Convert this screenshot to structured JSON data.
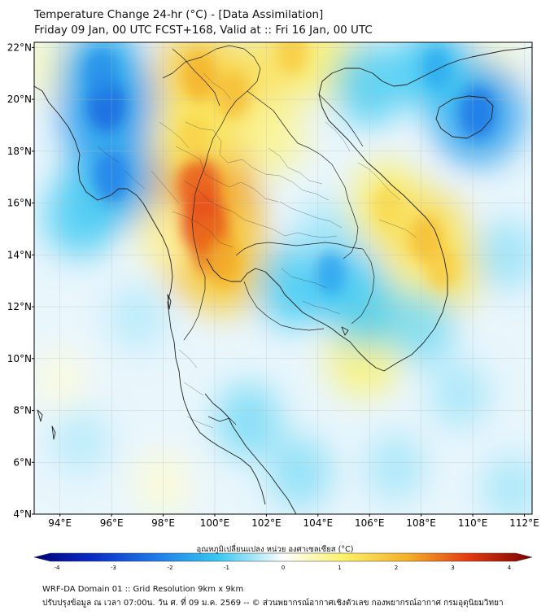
{
  "title": {
    "line1": "Temperature Change 24-hr (°C) - [Data Assimilation]",
    "line2": "Friday 09 Jan, 00 UTC FCST+168, Valid at :: Fri 16 Jan, 00 UTC"
  },
  "map": {
    "lat_labels": [
      "22°N",
      "20°N",
      "18°N",
      "16°N",
      "14°N",
      "12°N",
      "10°N",
      "8°N",
      "6°N",
      "4°N"
    ],
    "lat_values": [
      22,
      20,
      18,
      16,
      14,
      12,
      10,
      8,
      6,
      4
    ],
    "lon_labels": [
      "94°E",
      "96°E",
      "98°E",
      "100°E",
      "102°E",
      "104°E",
      "106°E",
      "108°E",
      "110°E",
      "112°E"
    ],
    "lon_values": [
      94,
      96,
      98,
      100,
      102,
      104,
      106,
      108,
      110,
      112
    ],
    "extent": {
      "lon_min": 93,
      "lon_max": 112.3,
      "lat_min": 4,
      "lat_max": 22.2
    },
    "field_blobs": [
      {
        "lon": 99.6,
        "lat": 15.2,
        "value": 3.0
      },
      {
        "lon": 99.4,
        "lat": 16.6,
        "value": 2.8
      },
      {
        "lon": 99.9,
        "lat": 14.3,
        "value": 2.6
      },
      {
        "lon": 100.4,
        "lat": 13.7,
        "value": 2.0
      },
      {
        "lon": 99.4,
        "lat": 20.9,
        "value": 2.0
      },
      {
        "lon": 100.7,
        "lat": 20.2,
        "value": 1.8
      },
      {
        "lon": 99.2,
        "lat": 18.5,
        "value": 1.5
      },
      {
        "lon": 103.0,
        "lat": 21.8,
        "value": 1.6
      },
      {
        "lon": 104.5,
        "lat": 21.5,
        "value": 1.2
      },
      {
        "lon": 102.2,
        "lat": 18.6,
        "value": 1.0
      },
      {
        "lon": 106.7,
        "lat": 15.9,
        "value": 1.4
      },
      {
        "lon": 108.2,
        "lat": 14.6,
        "value": 1.8
      },
      {
        "lon": 108.8,
        "lat": 13.5,
        "value": 1.6
      },
      {
        "lon": 107.3,
        "lat": 12.3,
        "value": 1.0
      },
      {
        "lon": 105.8,
        "lat": 10.2,
        "value": 1.3
      },
      {
        "lon": 98.2,
        "lat": 14.8,
        "value": 0.8
      },
      {
        "lon": 93.5,
        "lat": 21.3,
        "value": 0.6
      },
      {
        "lon": 110.8,
        "lat": 21.3,
        "value": 0.5
      },
      {
        "lon": 95.8,
        "lat": 19.8,
        "value": -2.3
      },
      {
        "lon": 96.0,
        "lat": 17.0,
        "value": -2.0
      },
      {
        "lon": 95.6,
        "lat": 21.0,
        "value": -1.8
      },
      {
        "lon": 94.8,
        "lat": 15.5,
        "value": -1.2
      },
      {
        "lon": 110.2,
        "lat": 19.5,
        "value": -2.1
      },
      {
        "lon": 108.6,
        "lat": 21.2,
        "value": -1.4
      },
      {
        "lon": 106.0,
        "lat": 20.6,
        "value": -1.2
      },
      {
        "lon": 104.5,
        "lat": 13.3,
        "value": -1.5
      },
      {
        "lon": 103.0,
        "lat": 12.8,
        "value": -1.2
      },
      {
        "lon": 105.8,
        "lat": 12.0,
        "value": -1.2
      },
      {
        "lon": 104.3,
        "lat": 14.8,
        "value": -0.6
      },
      {
        "lon": 108.0,
        "lat": 11.2,
        "value": -0.9
      },
      {
        "lon": 101.3,
        "lat": 7.6,
        "value": -0.9
      },
      {
        "lon": 103.3,
        "lat": 5.6,
        "value": -0.8
      },
      {
        "lon": 107.0,
        "lat": 5.8,
        "value": -0.6
      },
      {
        "lon": 109.5,
        "lat": 8.6,
        "value": -0.6
      },
      {
        "lon": 111.5,
        "lat": 5.0,
        "value": -0.6
      },
      {
        "lon": 94.8,
        "lat": 6.8,
        "value": -0.5
      },
      {
        "lon": 97.0,
        "lat": 11.6,
        "value": -0.5
      },
      {
        "lon": 111.3,
        "lat": 14.0,
        "value": -0.7
      },
      {
        "lon": 98.0,
        "lat": 5.2,
        "value": 0.4
      },
      {
        "lon": 94.0,
        "lat": 9.2,
        "value": 0.3
      }
    ]
  },
  "colorbar": {
    "title": "อุณหภูมิเปลี่ยนแปลง หน่วย องศาเซลเซียส (°C)",
    "min": -4,
    "max": 4,
    "tick_labels": [
      "-4",
      "-3",
      "-2",
      "-1",
      "0",
      "1",
      "2",
      "3",
      "4"
    ],
    "tick_values": [
      -4,
      -3,
      -2,
      -1,
      0,
      1,
      2,
      3,
      4
    ]
  },
  "footer": {
    "line1": "WRF-DA Domain 01 :: Grid Resolution 9km x 9km",
    "line2": "ปรับปรุงข้อมูล ณ เวลา 07:00น. วัน ศ. ที่ 09 ม.ค. 2569 -- © ส่วนพยากรณ์อากาศเชิงตัวเลข กองพยากรณ์อากาศ กรมอุตุนิยมวิทยา"
  },
  "colors": {
    "cold": "#1e3fd0",
    "cyan": "#2fc4f0",
    "neutral": "#ffffff",
    "yellow": "#f7e04a",
    "hot": "#e0200e",
    "coastline": "#222222",
    "grid": "#bbbbbb"
  }
}
